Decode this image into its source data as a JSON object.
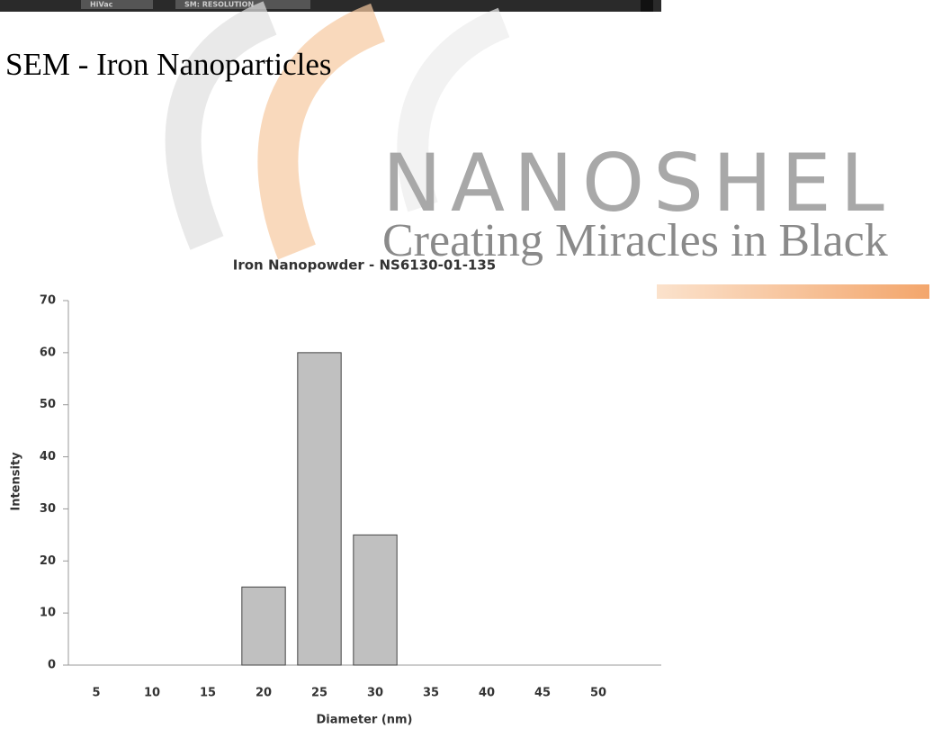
{
  "strip": {
    "left": "HiVac",
    "right": "SM: RESOLUTION"
  },
  "heading": "SEM - Iron Nanoparticles",
  "watermark": {
    "brand": "NANOSHEL",
    "tagline": "Creating Miracles in Black"
  },
  "chart_data": {
    "type": "bar",
    "title": "Iron Nanopowder - NS6130-01-135",
    "x_label": "Diameter (nm)",
    "y_label": "Intensity",
    "categories": [
      5,
      10,
      15,
      20,
      25,
      30,
      35,
      40,
      45,
      50
    ],
    "values": [
      0,
      0,
      0,
      15,
      60,
      25,
      0,
      0,
      0,
      0
    ],
    "color": "#c0c0c0",
    "ylim": [
      0,
      70
    ],
    "yticks": [
      0,
      10,
      20,
      30,
      40,
      50,
      60,
      70
    ],
    "grid": false
  }
}
